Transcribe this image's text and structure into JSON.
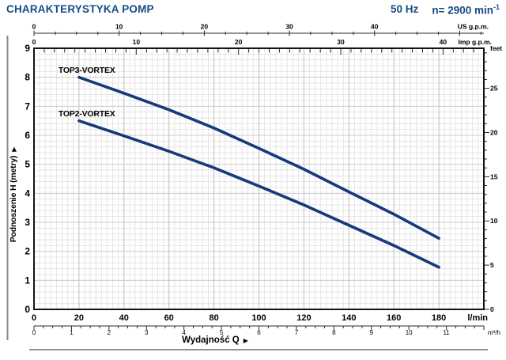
{
  "header": {
    "title": "CHARAKTERYSTYKA POMP",
    "frequency": "50 Hz",
    "speed": "n= 2900 min",
    "speed_exponent": "-1"
  },
  "chart_data": {
    "type": "line",
    "xlabel": "Wydajność Q",
    "ylabel": "Podnoszenie H (metry)",
    "axis_arrow": "▶",
    "x_axes": {
      "bottom_primary": {
        "unit": "l/min",
        "range": [
          0,
          200
        ],
        "tick_labels": [
          0,
          20,
          40,
          60,
          80,
          100,
          120,
          140,
          160,
          180
        ],
        "minor_step": 2.5
      },
      "bottom_secondary": {
        "unit": "m³/h",
        "lmin_per_unit": 16.667,
        "tick_labels": [
          0,
          1,
          2,
          3,
          4,
          5,
          6,
          7,
          8,
          9,
          10,
          11
        ],
        "minor_step": 0.25
      },
      "top_us": {
        "unit": "US g.p.m.",
        "lmin_per_unit": 3.785,
        "tick_labels": [
          0,
          10,
          20,
          30,
          40
        ],
        "minor_step": 2.5
      },
      "top_imp": {
        "unit": "Imp g.p.m.",
        "lmin_per_unit": 4.546,
        "tick_labels": [
          0,
          10,
          20,
          30,
          40
        ],
        "minor_step": 1
      }
    },
    "y_axes": {
      "left": {
        "unit": "metry",
        "range": [
          0,
          9
        ],
        "tick_labels": [
          0,
          1,
          2,
          3,
          4,
          5,
          6,
          7,
          8,
          9
        ]
      },
      "right": {
        "unit": "feet",
        "m_per_unit": 0.3048,
        "tick_labels": [
          0,
          5,
          10,
          15,
          20,
          25
        ],
        "minor_step": 1,
        "minor_max": 29
      }
    },
    "series": [
      {
        "name": "TOP3-VORTEX",
        "x": [
          20,
          40,
          60,
          80,
          100,
          120,
          140,
          160,
          180
        ],
        "values": [
          8.0,
          7.45,
          6.88,
          6.25,
          5.55,
          4.83,
          4.05,
          3.28,
          2.45
        ]
      },
      {
        "name": "TOP2-VORTEX",
        "x": [
          20,
          40,
          60,
          80,
          100,
          120,
          140,
          160,
          180
        ],
        "values": [
          6.5,
          5.98,
          5.45,
          4.88,
          4.25,
          3.6,
          2.9,
          2.2,
          1.45
        ]
      }
    ],
    "grid": true,
    "legend_position": "labels-on-curves",
    "colors": {
      "curve": "#17397c",
      "header_blue": "#164a87",
      "grid_minor": "#e5e5e5",
      "grid_major_v": "#bdbdbd",
      "grid_major_h": "#cbcbcb",
      "border": "#141414",
      "tick": "#2a2a2a",
      "rule_gray": "#8a8a8a"
    }
  }
}
